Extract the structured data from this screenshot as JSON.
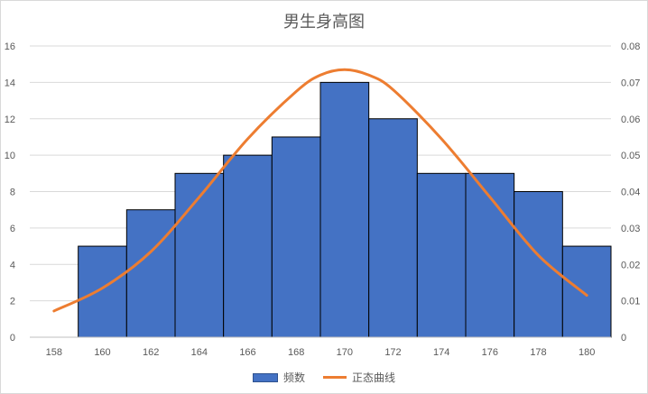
{
  "chart_data": {
    "type": "bar",
    "title": "男生身高图",
    "xlabel": "",
    "ylabel": "",
    "x_ticks": [
      "158",
      "160",
      "162",
      "164",
      "166",
      "168",
      "170",
      "172",
      "174",
      "176",
      "178",
      "180"
    ],
    "xlim": [
      157,
      181
    ],
    "ylim": [
      0,
      16
    ],
    "y2lim": [
      0,
      0.08
    ],
    "y_ticks": [
      "0",
      "2",
      "4",
      "6",
      "8",
      "10",
      "12",
      "14",
      "16"
    ],
    "y2_ticks": [
      "0",
      "0.01",
      "0.02",
      "0.03",
      "0.04",
      "0.05",
      "0.06",
      "0.07",
      "0.08"
    ],
    "grid": true,
    "legend_position": "bottom",
    "series": [
      {
        "name": "频数",
        "type": "bar",
        "color": "#4472c4",
        "bins": [
          [
            159,
            161
          ],
          [
            161,
            163
          ],
          [
            163,
            165
          ],
          [
            165,
            167
          ],
          [
            167,
            169
          ],
          [
            169,
            171
          ],
          [
            171,
            173
          ],
          [
            173,
            175
          ],
          [
            175,
            177
          ],
          [
            177,
            179
          ],
          [
            179,
            181
          ]
        ],
        "values": [
          5,
          7,
          9,
          10,
          11,
          14,
          12,
          9,
          9,
          8,
          5
        ]
      },
      {
        "name": "正态曲线",
        "type": "line",
        "axis": "secondary",
        "color": "#ed7d31",
        "x": [
          158,
          160,
          162,
          164,
          166,
          168,
          169,
          170,
          171,
          172,
          174,
          176,
          178,
          180
        ],
        "values": [
          0.0072,
          0.0135,
          0.0235,
          0.0385,
          0.0545,
          0.0675,
          0.072,
          0.0735,
          0.072,
          0.068,
          0.0545,
          0.0385,
          0.0225,
          0.0115
        ]
      }
    ]
  }
}
